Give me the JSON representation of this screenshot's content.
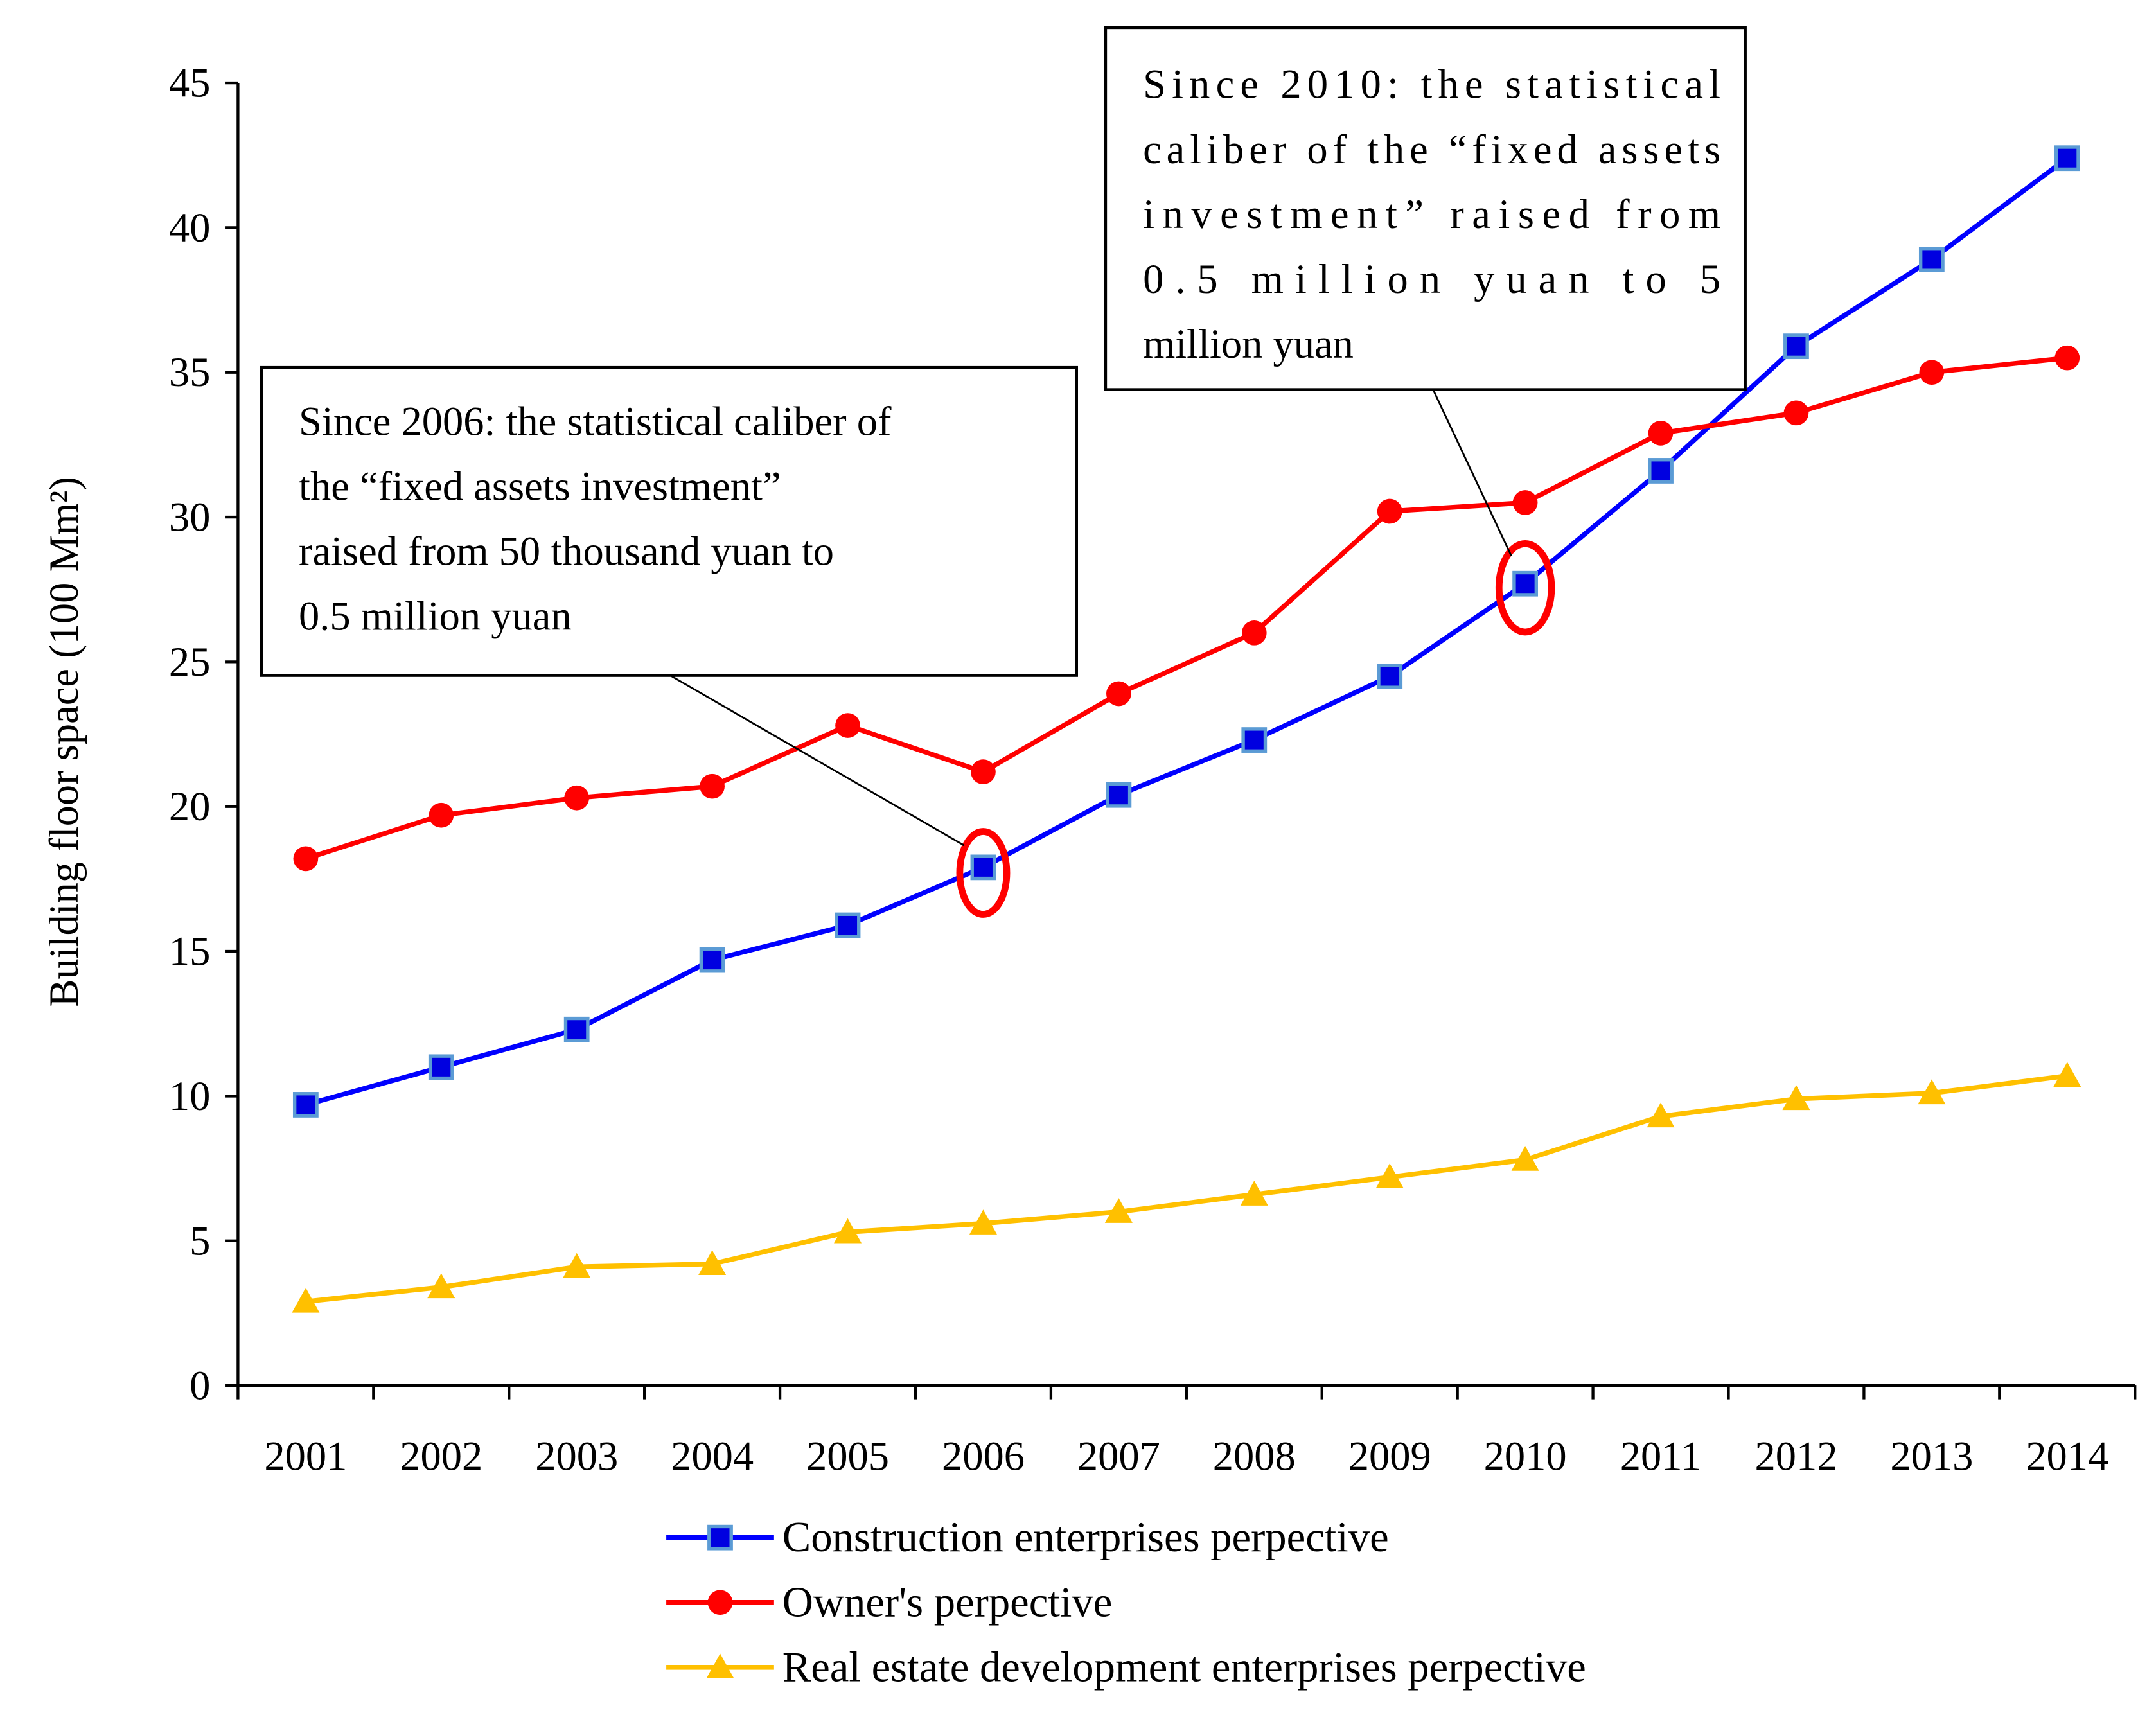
{
  "chart_data": {
    "type": "line",
    "title": "",
    "xlabel": "",
    "ylabel": "Building floor space (100 Mm²)",
    "ylim": [
      0,
      45
    ],
    "yticks": [
      0,
      5,
      10,
      15,
      20,
      25,
      30,
      35,
      40,
      45
    ],
    "categories": [
      "2001",
      "2002",
      "2003",
      "2004",
      "2005",
      "2006",
      "2007",
      "2008",
      "2009",
      "2010",
      "2011",
      "2012",
      "2013",
      "2014"
    ],
    "legend_placement": "bottom",
    "grid": false,
    "series": [
      {
        "name": "Construction enterprises perpective",
        "color": "#0000FF",
        "marker": "square",
        "marker_fill": "#0000E0",
        "marker_edge": "#5B9BD5",
        "values": [
          9.7,
          11.0,
          12.3,
          14.7,
          15.9,
          17.9,
          20.4,
          22.3,
          24.5,
          27.7,
          31.6,
          35.9,
          38.9,
          42.4
        ]
      },
      {
        "name": "Owner's  perpective",
        "color": "#FF0000",
        "marker": "circle",
        "values": [
          18.2,
          19.7,
          20.3,
          20.7,
          22.8,
          21.2,
          23.9,
          26.0,
          30.2,
          30.5,
          32.9,
          33.6,
          35.0,
          35.5
        ]
      },
      {
        "name": "Real estate development enterprises  perpective",
        "color": "#FFC000",
        "marker": "triangle",
        "values": [
          2.9,
          3.4,
          4.1,
          4.2,
          5.3,
          5.6,
          6.0,
          6.6,
          7.2,
          7.8,
          9.3,
          9.9,
          10.1,
          10.7
        ]
      }
    ],
    "annotations": [
      {
        "target_year": "2006",
        "target_series": 0,
        "lines": [
          "Since 2006: the statistical caliber of",
          "the “fixed assets investment”",
          "raised from 50 thousand yuan to",
          "0.5 million yuan"
        ]
      },
      {
        "target_year": "2010",
        "target_series": 0,
        "lines": [
          "Since 2010: the statistical",
          "caliber of the “fixed assets",
          "investment” raised from",
          "0.5 million yuan to 5",
          "million yuan"
        ]
      }
    ],
    "highlight_color": "#FF0000"
  }
}
